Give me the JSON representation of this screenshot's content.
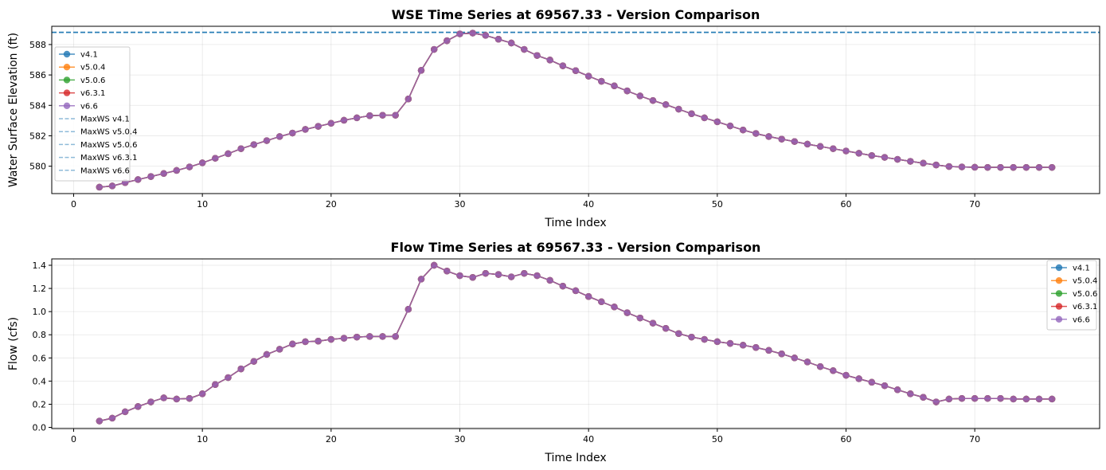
{
  "chart_data": [
    {
      "type": "line",
      "title": "WSE Time Series at 69567.33 - Version Comparison",
      "xlabel": "Time Index",
      "ylabel": "Water Surface Elevation (ft)",
      "xlim": [
        -1.7,
        79.7
      ],
      "ylim": [
        578.2,
        589.2
      ],
      "xticks": [
        0,
        10,
        20,
        30,
        40,
        50,
        60,
        70
      ],
      "yticks": [
        580,
        582,
        584,
        586,
        588
      ],
      "grid": true,
      "legend_position": "upper-left",
      "x": [
        2,
        3,
        4,
        5,
        6,
        7,
        8,
        9,
        10,
        11,
        12,
        13,
        14,
        15,
        16,
        17,
        18,
        19,
        20,
        21,
        22,
        23,
        24,
        25,
        26,
        27,
        28,
        29,
        30,
        31,
        32,
        33,
        34,
        35,
        36,
        37,
        38,
        39,
        40,
        41,
        42,
        43,
        44,
        45,
        46,
        47,
        48,
        49,
        50,
        51,
        52,
        53,
        54,
        55,
        56,
        57,
        58,
        59,
        60,
        61,
        62,
        63,
        64,
        65,
        66,
        67,
        68,
        69,
        70,
        71,
        72,
        73,
        74,
        75,
        76
      ],
      "series": [
        {
          "name": "v4.1",
          "color": "#1f77b4",
          "marker": "circle",
          "values": [
            578.62,
            578.7,
            578.92,
            579.12,
            579.32,
            579.52,
            579.72,
            579.95,
            580.22,
            580.52,
            580.82,
            581.15,
            581.42,
            581.68,
            581.95,
            582.18,
            582.42,
            582.62,
            582.82,
            583.02,
            583.18,
            583.32,
            583.35,
            583.35,
            584.42,
            586.3,
            587.68,
            588.25,
            588.7,
            588.75,
            588.6,
            588.35,
            588.1,
            587.68,
            587.28,
            586.98,
            586.6,
            586.28,
            585.92,
            585.58,
            585.28,
            584.95,
            584.62,
            584.32,
            584.05,
            583.75,
            583.45,
            583.18,
            582.92,
            582.65,
            582.38,
            582.15,
            581.95,
            581.78,
            581.62,
            581.45,
            581.3,
            581.15,
            581.0,
            580.85,
            580.7,
            580.58,
            580.45,
            580.32,
            580.2,
            580.08,
            579.98,
            579.95,
            579.93,
            579.92,
            579.92,
            579.92,
            579.92,
            579.92,
            579.92
          ]
        },
        {
          "name": "v5.0.4",
          "color": "#ff7f0e",
          "marker": "circle",
          "values": [
            578.62,
            578.7,
            578.92,
            579.12,
            579.32,
            579.52,
            579.72,
            579.95,
            580.22,
            580.52,
            580.82,
            581.15,
            581.42,
            581.68,
            581.95,
            582.18,
            582.42,
            582.62,
            582.82,
            583.02,
            583.18,
            583.32,
            583.35,
            583.35,
            584.42,
            586.3,
            587.68,
            588.25,
            588.7,
            588.75,
            588.6,
            588.35,
            588.1,
            587.68,
            587.28,
            586.98,
            586.6,
            586.28,
            585.92,
            585.58,
            585.28,
            584.95,
            584.62,
            584.32,
            584.05,
            583.75,
            583.45,
            583.18,
            582.92,
            582.65,
            582.38,
            582.15,
            581.95,
            581.78,
            581.62,
            581.45,
            581.3,
            581.15,
            581.0,
            580.85,
            580.7,
            580.58,
            580.45,
            580.32,
            580.2,
            580.08,
            579.98,
            579.95,
            579.93,
            579.92,
            579.92,
            579.92,
            579.92,
            579.92,
            579.92
          ]
        },
        {
          "name": "v5.0.6",
          "color": "#2ca02c",
          "marker": "circle",
          "values": [
            578.62,
            578.7,
            578.92,
            579.12,
            579.32,
            579.52,
            579.72,
            579.95,
            580.22,
            580.52,
            580.82,
            581.15,
            581.42,
            581.68,
            581.95,
            582.18,
            582.42,
            582.62,
            582.82,
            583.02,
            583.18,
            583.32,
            583.35,
            583.35,
            584.42,
            586.3,
            587.68,
            588.25,
            588.7,
            588.75,
            588.6,
            588.35,
            588.1,
            587.68,
            587.28,
            586.98,
            586.6,
            586.28,
            585.92,
            585.58,
            585.28,
            584.95,
            584.62,
            584.32,
            584.05,
            583.75,
            583.45,
            583.18,
            582.92,
            582.65,
            582.38,
            582.15,
            581.95,
            581.78,
            581.62,
            581.45,
            581.3,
            581.15,
            581.0,
            580.85,
            580.7,
            580.58,
            580.45,
            580.32,
            580.2,
            580.08,
            579.98,
            579.95,
            579.93,
            579.92,
            579.92,
            579.92,
            579.92,
            579.92,
            579.92
          ]
        },
        {
          "name": "v6.3.1",
          "color": "#d62728",
          "marker": "circle",
          "values": [
            578.62,
            578.7,
            578.92,
            579.12,
            579.32,
            579.52,
            579.72,
            579.95,
            580.22,
            580.52,
            580.82,
            581.15,
            581.42,
            581.68,
            581.95,
            582.18,
            582.42,
            582.62,
            582.82,
            583.02,
            583.18,
            583.32,
            583.35,
            583.35,
            584.42,
            586.3,
            587.68,
            588.25,
            588.7,
            588.75,
            588.6,
            588.35,
            588.1,
            587.68,
            587.28,
            586.98,
            586.6,
            586.28,
            585.92,
            585.58,
            585.28,
            584.95,
            584.62,
            584.32,
            584.05,
            583.75,
            583.45,
            583.18,
            582.92,
            582.65,
            582.38,
            582.15,
            581.95,
            581.78,
            581.62,
            581.45,
            581.3,
            581.15,
            581.0,
            580.85,
            580.7,
            580.58,
            580.45,
            580.32,
            580.2,
            580.08,
            579.98,
            579.95,
            579.93,
            579.92,
            579.92,
            579.92,
            579.92,
            579.92,
            579.92
          ]
        },
        {
          "name": "v6.6",
          "color": "#9467bd",
          "marker": "circle",
          "values": [
            578.62,
            578.7,
            578.92,
            579.12,
            579.32,
            579.52,
            579.72,
            579.95,
            580.22,
            580.52,
            580.82,
            581.15,
            581.42,
            581.68,
            581.95,
            582.18,
            582.42,
            582.62,
            582.82,
            583.02,
            583.18,
            583.32,
            583.35,
            583.35,
            584.42,
            586.3,
            587.68,
            588.25,
            588.7,
            588.75,
            588.6,
            588.35,
            588.1,
            587.68,
            587.28,
            586.98,
            586.6,
            586.28,
            585.92,
            585.58,
            585.28,
            584.95,
            584.62,
            584.32,
            584.05,
            583.75,
            583.45,
            583.18,
            582.92,
            582.65,
            582.38,
            582.15,
            581.95,
            581.78,
            581.62,
            581.45,
            581.3,
            581.15,
            581.0,
            580.85,
            580.7,
            580.58,
            580.45,
            580.32,
            580.2,
            580.08,
            579.98,
            579.95,
            579.93,
            579.92,
            579.92,
            579.92,
            579.92,
            579.92,
            579.92
          ]
        }
      ],
      "reference_lines": [
        {
          "name": "MaxWS v4.1",
          "y": 588.8,
          "color": "#1f77b4"
        },
        {
          "name": "MaxWS v5.0.4",
          "y": 588.8,
          "color": "#1f77b4"
        },
        {
          "name": "MaxWS v5.0.6",
          "y": 588.8,
          "color": "#1f77b4"
        },
        {
          "name": "MaxWS v6.3.1",
          "y": 588.8,
          "color": "#1f77b4"
        },
        {
          "name": "MaxWS v6.6",
          "y": 588.8,
          "color": "#1f77b4"
        }
      ]
    },
    {
      "type": "line",
      "title": "Flow Time Series at 69567.33 - Version Comparison",
      "xlabel": "Time Index",
      "ylabel": "Flow (cfs)",
      "xlim": [
        -1.7,
        79.7
      ],
      "ylim": [
        -0.01,
        1.455
      ],
      "xticks": [
        0,
        10,
        20,
        30,
        40,
        50,
        60,
        70
      ],
      "yticks": [
        0.0,
        0.2,
        0.4,
        0.6,
        0.8,
        1.0,
        1.2,
        1.4
      ],
      "ytick_labels": [
        "0.0",
        "0.2",
        "0.4",
        "0.6",
        "0.8",
        "1.0",
        "1.2",
        "1.4"
      ],
      "grid": true,
      "legend_position": "upper-right",
      "x": [
        2,
        3,
        4,
        5,
        6,
        7,
        8,
        9,
        10,
        11,
        12,
        13,
        14,
        15,
        16,
        17,
        18,
        19,
        20,
        21,
        22,
        23,
        24,
        25,
        26,
        27,
        28,
        29,
        30,
        31,
        32,
        33,
        34,
        35,
        36,
        37,
        38,
        39,
        40,
        41,
        42,
        43,
        44,
        45,
        46,
        47,
        48,
        49,
        50,
        51,
        52,
        53,
        54,
        55,
        56,
        57,
        58,
        59,
        60,
        61,
        62,
        63,
        64,
        65,
        66,
        67,
        68,
        69,
        70,
        71,
        72,
        73,
        74,
        75,
        76
      ],
      "series": [
        {
          "name": "v4.1",
          "color": "#1f77b4",
          "marker": "circle",
          "values": [
            0.055,
            0.08,
            0.135,
            0.18,
            0.22,
            0.255,
            0.245,
            0.25,
            0.29,
            0.37,
            0.43,
            0.505,
            0.57,
            0.63,
            0.675,
            0.72,
            0.74,
            0.745,
            0.76,
            0.77,
            0.78,
            0.785,
            0.785,
            0.785,
            1.02,
            1.28,
            1.4,
            1.35,
            1.31,
            1.295,
            1.33,
            1.32,
            1.3,
            1.33,
            1.31,
            1.27,
            1.22,
            1.18,
            1.13,
            1.085,
            1.04,
            0.99,
            0.945,
            0.9,
            0.855,
            0.81,
            0.78,
            0.76,
            0.74,
            0.725,
            0.71,
            0.69,
            0.665,
            0.635,
            0.6,
            0.565,
            0.525,
            0.49,
            0.45,
            0.42,
            0.39,
            0.36,
            0.325,
            0.29,
            0.26,
            0.22,
            0.245,
            0.25,
            0.25,
            0.25,
            0.25,
            0.245,
            0.245,
            0.245,
            0.245
          ]
        },
        {
          "name": "v5.0.4",
          "color": "#ff7f0e",
          "marker": "circle",
          "values": [
            0.055,
            0.08,
            0.135,
            0.18,
            0.22,
            0.255,
            0.245,
            0.25,
            0.29,
            0.37,
            0.43,
            0.505,
            0.57,
            0.63,
            0.675,
            0.72,
            0.74,
            0.745,
            0.76,
            0.77,
            0.78,
            0.785,
            0.785,
            0.785,
            1.02,
            1.28,
            1.4,
            1.35,
            1.31,
            1.295,
            1.33,
            1.32,
            1.3,
            1.33,
            1.31,
            1.27,
            1.22,
            1.18,
            1.13,
            1.085,
            1.04,
            0.99,
            0.945,
            0.9,
            0.855,
            0.81,
            0.78,
            0.76,
            0.74,
            0.725,
            0.71,
            0.69,
            0.665,
            0.635,
            0.6,
            0.565,
            0.525,
            0.49,
            0.45,
            0.42,
            0.39,
            0.36,
            0.325,
            0.29,
            0.26,
            0.22,
            0.245,
            0.25,
            0.25,
            0.25,
            0.25,
            0.245,
            0.245,
            0.245,
            0.245
          ]
        },
        {
          "name": "v5.0.6",
          "color": "#2ca02c",
          "marker": "circle",
          "values": [
            0.055,
            0.08,
            0.135,
            0.18,
            0.22,
            0.255,
            0.245,
            0.25,
            0.29,
            0.37,
            0.43,
            0.505,
            0.57,
            0.63,
            0.675,
            0.72,
            0.74,
            0.745,
            0.76,
            0.77,
            0.78,
            0.785,
            0.785,
            0.785,
            1.02,
            1.28,
            1.4,
            1.35,
            1.31,
            1.295,
            1.33,
            1.32,
            1.3,
            1.33,
            1.31,
            1.27,
            1.22,
            1.18,
            1.13,
            1.085,
            1.04,
            0.99,
            0.945,
            0.9,
            0.855,
            0.81,
            0.78,
            0.76,
            0.74,
            0.725,
            0.71,
            0.69,
            0.665,
            0.635,
            0.6,
            0.565,
            0.525,
            0.49,
            0.45,
            0.42,
            0.39,
            0.36,
            0.325,
            0.29,
            0.26,
            0.22,
            0.245,
            0.25,
            0.25,
            0.25,
            0.25,
            0.245,
            0.245,
            0.245,
            0.245
          ]
        },
        {
          "name": "v6.3.1",
          "color": "#d62728",
          "marker": "circle",
          "values": [
            0.055,
            0.08,
            0.135,
            0.18,
            0.22,
            0.255,
            0.245,
            0.25,
            0.29,
            0.37,
            0.43,
            0.505,
            0.57,
            0.63,
            0.675,
            0.72,
            0.74,
            0.745,
            0.76,
            0.77,
            0.78,
            0.785,
            0.785,
            0.785,
            1.02,
            1.28,
            1.4,
            1.35,
            1.31,
            1.295,
            1.33,
            1.32,
            1.3,
            1.33,
            1.31,
            1.27,
            1.22,
            1.18,
            1.13,
            1.085,
            1.04,
            0.99,
            0.945,
            0.9,
            0.855,
            0.81,
            0.78,
            0.76,
            0.74,
            0.725,
            0.71,
            0.69,
            0.665,
            0.635,
            0.6,
            0.565,
            0.525,
            0.49,
            0.45,
            0.42,
            0.39,
            0.36,
            0.325,
            0.29,
            0.26,
            0.22,
            0.245,
            0.25,
            0.25,
            0.25,
            0.25,
            0.245,
            0.245,
            0.245,
            0.245
          ]
        },
        {
          "name": "v6.6",
          "color": "#9467bd",
          "marker": "circle",
          "values": [
            0.055,
            0.08,
            0.135,
            0.18,
            0.22,
            0.255,
            0.245,
            0.25,
            0.29,
            0.37,
            0.43,
            0.505,
            0.57,
            0.63,
            0.675,
            0.72,
            0.74,
            0.745,
            0.76,
            0.77,
            0.78,
            0.785,
            0.785,
            0.785,
            1.02,
            1.28,
            1.4,
            1.35,
            1.31,
            1.295,
            1.33,
            1.32,
            1.3,
            1.33,
            1.31,
            1.27,
            1.22,
            1.18,
            1.13,
            1.085,
            1.04,
            0.99,
            0.945,
            0.9,
            0.855,
            0.81,
            0.78,
            0.76,
            0.74,
            0.725,
            0.71,
            0.69,
            0.665,
            0.635,
            0.6,
            0.565,
            0.525,
            0.49,
            0.45,
            0.42,
            0.39,
            0.36,
            0.325,
            0.29,
            0.26,
            0.22,
            0.245,
            0.25,
            0.25,
            0.25,
            0.25,
            0.245,
            0.245,
            0.245,
            0.245
          ]
        }
      ]
    }
  ]
}
